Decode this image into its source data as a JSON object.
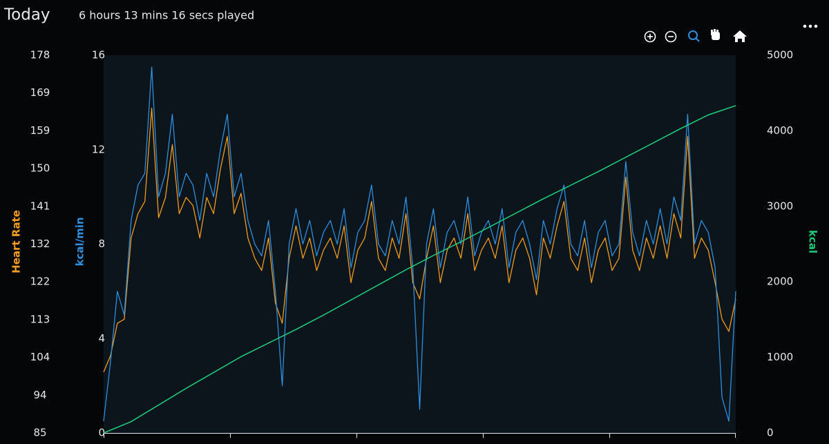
{
  "chart_data": {
    "type": "line",
    "title": "Today",
    "subtitle": "6 hours 13 mins 16 secs played",
    "ylabel": "Heart Rate",
    "y2label": "kcal/min",
    "y3label": "kcal",
    "ylim": [
      85,
      178
    ],
    "yticks": [
      85,
      {
        "value": 94.3,
        "label": "94"
      },
      {
        "value": 103.6,
        "label": "104"
      },
      {
        "value": 112.9,
        "label": "113"
      },
      {
        "value": 122.2,
        "label": "122"
      },
      {
        "value": 131.5,
        "label": "132"
      },
      {
        "value": 140.8,
        "label": "141"
      },
      {
        "value": 150.1,
        "label": "150"
      },
      {
        "value": 159.4,
        "label": "159"
      },
      {
        "value": 168.7,
        "label": "169"
      },
      178
    ],
    "y2lim": [
      0,
      16
    ],
    "y2ticks": [
      0,
      4,
      8,
      12,
      16
    ],
    "y3lim": [
      0,
      5000
    ],
    "y3ticks": [
      0,
      1000,
      2000,
      3000,
      4000,
      5000
    ],
    "series": [
      {
        "name": "Heart Rate",
        "color": "#f39c1f",
        "axis": "y",
        "values": [
          100,
          104,
          112,
          113,
          133,
          139,
          142,
          165,
          138,
          143,
          156,
          139,
          143,
          141,
          133,
          143,
          139,
          150,
          158,
          139,
          144,
          133,
          128,
          125,
          133,
          117,
          112,
          128,
          136,
          128,
          133,
          125,
          130,
          133,
          128,
          136,
          122,
          130,
          133,
          142,
          128,
          125,
          133,
          128,
          139,
          122,
          118,
          128,
          136,
          122,
          130,
          133,
          128,
          139,
          125,
          130,
          133,
          128,
          136,
          122,
          130,
          133,
          128,
          119,
          133,
          128,
          136,
          142,
          128,
          125,
          133,
          122,
          130,
          133,
          125,
          128,
          148,
          130,
          125,
          133,
          128,
          136,
          128,
          139,
          133,
          158,
          128,
          133,
          130,
          122,
          113,
          110,
          118
        ]
      },
      {
        "name": "kcal/min",
        "color": "#2e8fe0",
        "axis": "y2",
        "values": [
          0.5,
          3,
          6,
          5,
          9,
          10.5,
          11,
          15.5,
          10,
          11,
          13.5,
          10,
          11,
          10.5,
          9,
          11,
          10,
          12,
          13.5,
          10,
          11,
          9,
          8,
          7.5,
          9,
          6,
          2,
          8,
          9.5,
          8,
          9,
          7.5,
          8.5,
          9,
          8,
          9.5,
          7,
          8.5,
          9,
          10.5,
          8,
          7.5,
          9,
          8,
          10,
          7,
          1,
          8,
          9.5,
          7,
          8.5,
          9,
          8,
          10,
          7.5,
          8.5,
          9,
          8,
          9.5,
          7,
          8.5,
          9,
          8,
          6.5,
          9,
          8,
          9.5,
          10.5,
          8,
          7.5,
          9,
          7,
          8.5,
          9,
          7.5,
          8,
          11.5,
          8.5,
          7.5,
          9,
          8,
          9.5,
          8,
          10,
          9,
          13.5,
          8,
          9,
          8.5,
          7,
          1.5,
          0.5,
          6
        ]
      },
      {
        "name": "kcal",
        "color": "#1fc77a",
        "axis": "y3",
        "values": [
          0,
          150,
          370,
          590,
          800,
          1010,
          1190,
          1370,
          1560,
          1760,
          1960,
          2160,
          2350,
          2530,
          2720,
          2910,
          3100,
          3280,
          3460,
          3650,
          3840,
          4030,
          4210,
          4333
        ]
      }
    ]
  }
}
